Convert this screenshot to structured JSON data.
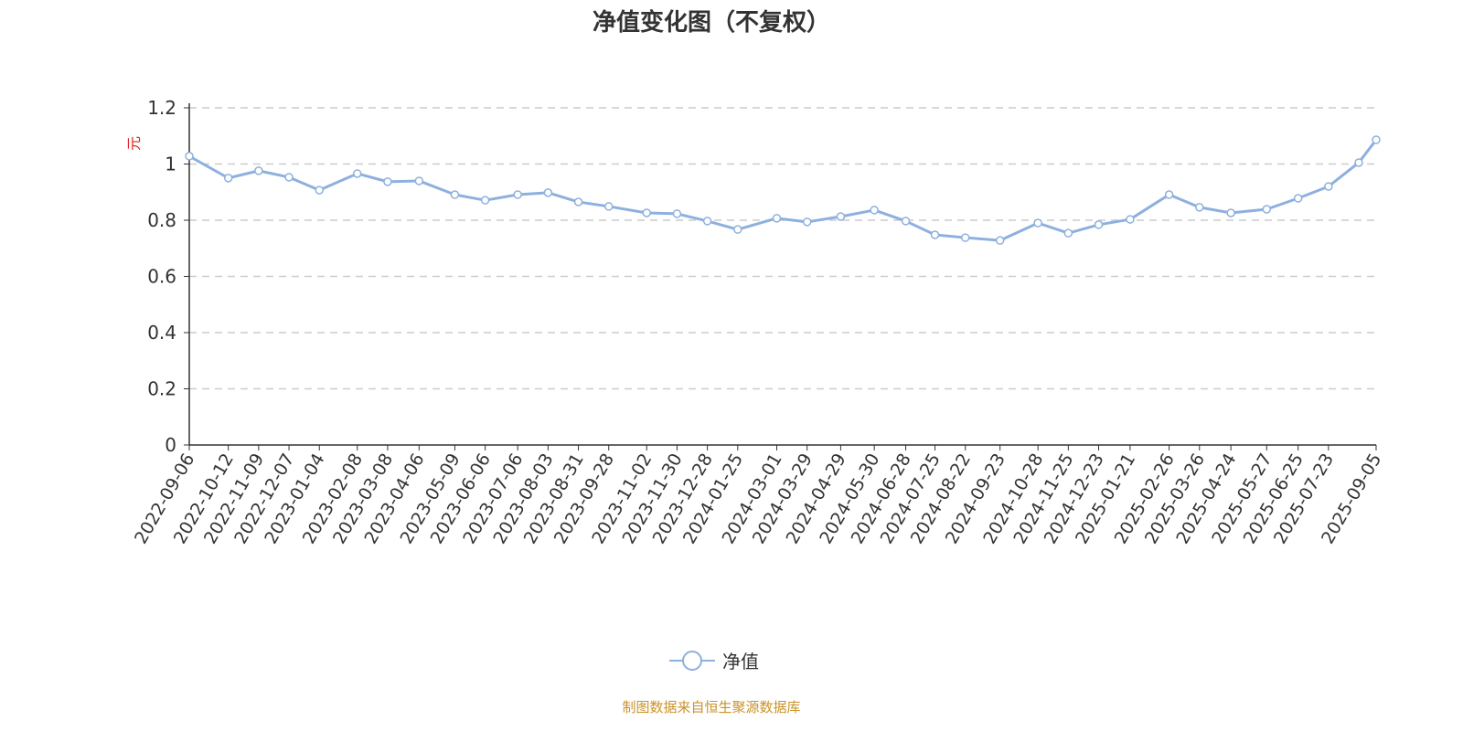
{
  "chart_data": {
    "type": "line",
    "title": "净值变化图（不复权）",
    "ylabel": "元",
    "ylim": [
      0,
      1.2
    ],
    "yticks": [
      0,
      0.2,
      0.4,
      0.6,
      0.8,
      1,
      1.2
    ],
    "grid": true,
    "legend_position": "bottom",
    "xtick_labels": [
      "2022-09-06",
      "2022-10-12",
      "2022-11-09",
      "2022-12-07",
      "2023-01-04",
      "2023-02-08",
      "2023-03-08",
      "2023-04-06",
      "2023-05-09",
      "2023-06-06",
      "2023-07-06",
      "2023-08-03",
      "2023-08-31",
      "2023-09-28",
      "2023-11-02",
      "2023-11-30",
      "2023-12-28",
      "2024-01-25",
      "2024-03-01",
      "2024-03-29",
      "2024-04-29",
      "2024-05-30",
      "2024-06-28",
      "2024-07-25",
      "2024-08-22",
      "2024-09-23",
      "2024-10-28",
      "2024-11-25",
      "2024-12-23",
      "2025-01-21",
      "2025-02-26",
      "2025-03-26",
      "2025-04-24",
      "2025-05-27",
      "2025-06-25",
      "2025-07-23",
      "2025-09-05"
    ],
    "series": [
      {
        "name": "净值",
        "color": "#8eb0de",
        "x": [
          "2022-09-06",
          "2022-10-12",
          "2022-11-09",
          "2022-12-07",
          "2023-01-04",
          "2023-02-08",
          "2023-03-08",
          "2023-04-06",
          "2023-05-09",
          "2023-06-06",
          "2023-07-06",
          "2023-08-03",
          "2023-08-31",
          "2023-09-28",
          "2023-11-02",
          "2023-11-30",
          "2023-12-28",
          "2024-01-25",
          "2024-03-01",
          "2024-03-29",
          "2024-04-29",
          "2024-05-30",
          "2024-06-28",
          "2024-07-25",
          "2024-08-22",
          "2024-09-23",
          "2024-10-28",
          "2024-11-25",
          "2024-12-23",
          "2025-01-21",
          "2025-02-26",
          "2025-03-26",
          "2025-04-24",
          "2025-05-27",
          "2025-06-25",
          "2025-07-23",
          "2025-08-20",
          "2025-09-05"
        ],
        "values": [
          1.028,
          0.95,
          0.976,
          0.953,
          0.907,
          0.966,
          0.937,
          0.94,
          0.891,
          0.871,
          0.891,
          0.898,
          0.865,
          0.849,
          0.826,
          0.823,
          0.797,
          0.767,
          0.807,
          0.794,
          0.813,
          0.836,
          0.797,
          0.748,
          0.738,
          0.728,
          0.79,
          0.754,
          0.784,
          0.803,
          0.891,
          0.846,
          0.826,
          0.839,
          0.878,
          0.92,
          1.005,
          1.086
        ]
      }
    ]
  },
  "footer": "制图数据来自恒生聚源数据库"
}
